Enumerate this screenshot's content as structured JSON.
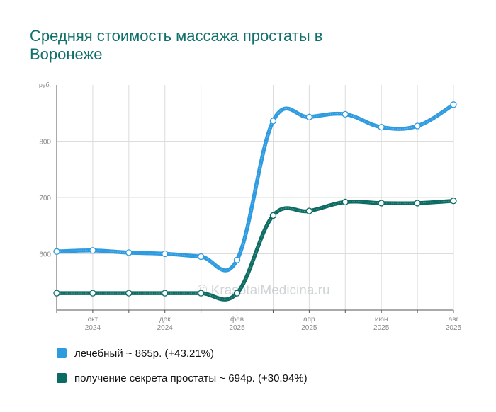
{
  "title": "Средняя стоимость массажа простаты в Воронеже",
  "watermark": "© KrasotaiMedicina.ru",
  "chart_data": {
    "type": "line",
    "y_unit": "руб.",
    "ylim": [
      500,
      900
    ],
    "y_ticks": [
      600,
      700,
      800
    ],
    "x": [
      "2024-09",
      "2024-10",
      "2024-11",
      "2024-12",
      "2025-01",
      "2025-02",
      "2025-03",
      "2025-04",
      "2025-05",
      "2025-06",
      "2025-07",
      "2025-08"
    ],
    "x_tick_labels": [
      {
        "month": "окт",
        "year": "2024",
        "index": 1
      },
      {
        "month": "дек",
        "year": "2024",
        "index": 3
      },
      {
        "month": "фев",
        "year": "2025",
        "index": 5
      },
      {
        "month": "апр",
        "year": "2025",
        "index": 7
      },
      {
        "month": "июн",
        "year": "2025",
        "index": 9
      },
      {
        "month": "авг",
        "year": "2025",
        "index": 11
      }
    ],
    "grid": true,
    "legend_position": "bottom",
    "series": [
      {
        "name": "лечебный",
        "legend_label": "лечебный ~ 865р. (+43.21%)",
        "color": "#2e9be0",
        "values": [
          604,
          606,
          602,
          600,
          595,
          589,
          836,
          843,
          848,
          825,
          827,
          865
        ]
      },
      {
        "name": "получение секрета простаты",
        "legend_label": "получение секрета простаты ~ 694р. (+30.94%)",
        "color": "#0c6b62",
        "values": [
          530,
          530,
          530,
          530,
          530,
          530,
          668,
          676,
          692,
          690,
          690,
          694
        ]
      }
    ]
  }
}
